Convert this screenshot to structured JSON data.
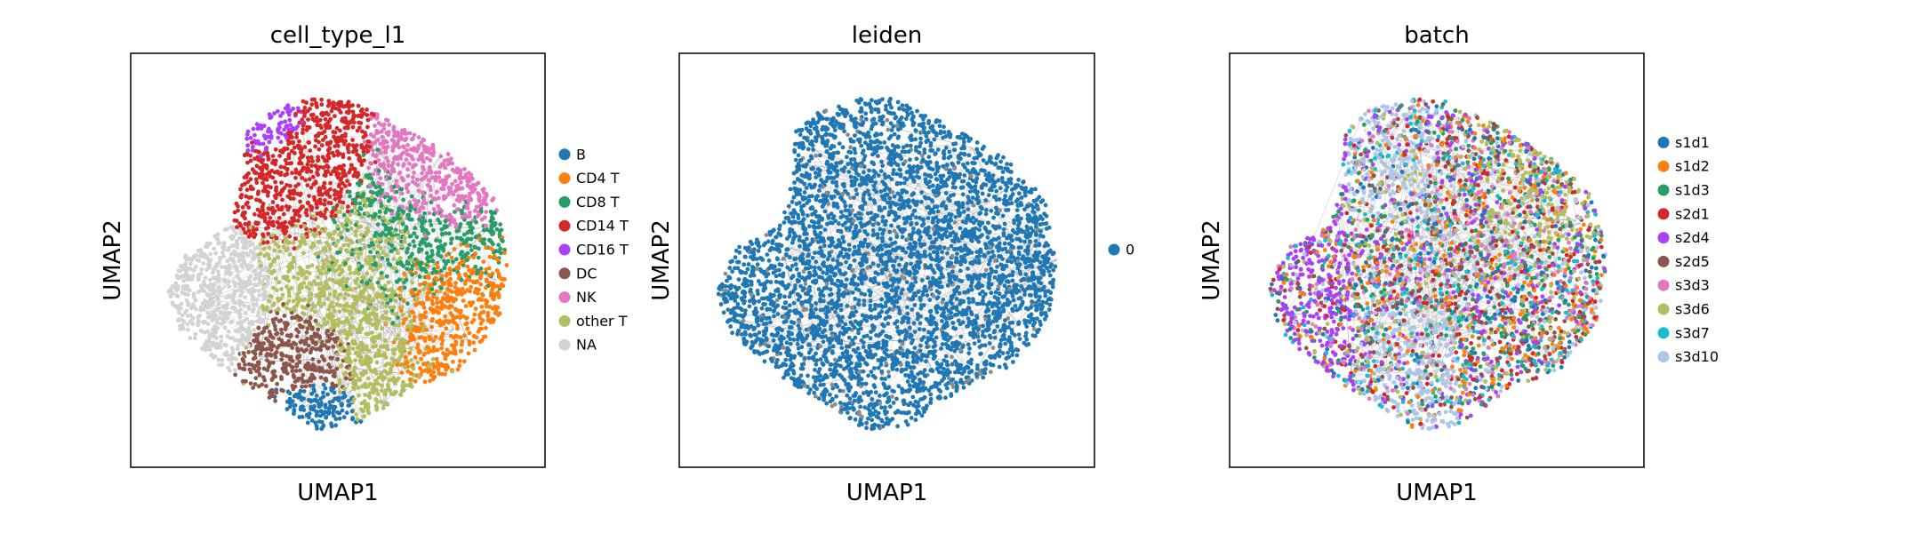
{
  "chart_data": [
    {
      "type": "scatter",
      "title": "cell_type_l1",
      "xlabel": "UMAP1",
      "ylabel": "UMAP2",
      "grid": false,
      "legend_placement": "right",
      "edges_drawn": true,
      "series": [
        {
          "name": "B",
          "color": "#1f77b4"
        },
        {
          "name": "CD4 T",
          "color": "#ff7f0e"
        },
        {
          "name": "CD8 T",
          "color": "#279e68"
        },
        {
          "name": "CD14 T",
          "color": "#d62728"
        },
        {
          "name": "CD16 T",
          "color": "#aa40fc"
        },
        {
          "name": "DC",
          "color": "#8c564b"
        },
        {
          "name": "NK",
          "color": "#e377c2"
        },
        {
          "name": "other T",
          "color": "#b5bd61"
        },
        {
          "name": "NA",
          "color": "#d3d3d3"
        }
      ]
    },
    {
      "type": "scatter",
      "title": "leiden",
      "xlabel": "UMAP1",
      "ylabel": "UMAP2",
      "grid": false,
      "legend_placement": "right",
      "edges_drawn": true,
      "series": [
        {
          "name": "0",
          "color": "#1f77b4"
        }
      ]
    },
    {
      "type": "scatter",
      "title": "batch",
      "xlabel": "UMAP1",
      "ylabel": "UMAP2",
      "grid": false,
      "legend_placement": "right",
      "edges_drawn": true,
      "series": [
        {
          "name": "s1d1",
          "color": "#1f77b4"
        },
        {
          "name": "s1d2",
          "color": "#ff7f0e"
        },
        {
          "name": "s1d3",
          "color": "#279e68"
        },
        {
          "name": "s2d1",
          "color": "#d62728"
        },
        {
          "name": "s2d4",
          "color": "#aa40fc"
        },
        {
          "name": "s2d5",
          "color": "#8c564b"
        },
        {
          "name": "s3d3",
          "color": "#e377c2"
        },
        {
          "name": "s3d6",
          "color": "#b5bd61"
        },
        {
          "name": "s3d7",
          "color": "#17becf"
        },
        {
          "name": "s3d10",
          "color": "#aec7e8"
        }
      ]
    }
  ]
}
